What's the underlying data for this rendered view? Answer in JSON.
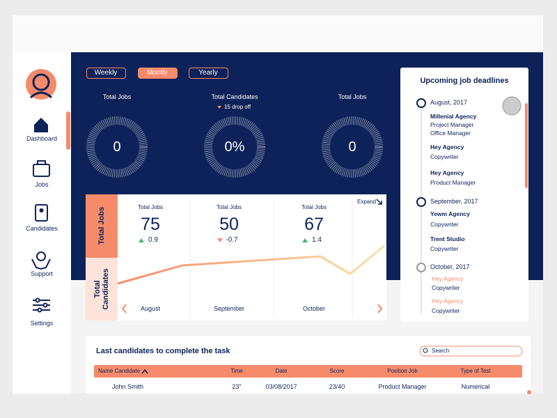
{
  "tabs": [
    "Weekly",
    "Montly",
    "Yearly"
  ],
  "sidebar": [
    "Dashboard",
    "Jobs",
    "Candidates",
    "Support",
    "Settings"
  ],
  "donuts": [
    {
      "title": "Total Jobs",
      "value": "0"
    },
    {
      "title": "Total Candidates",
      "note": "15 drop off",
      "value": "0%"
    },
    {
      "title": "Total Jobs",
      "value": "0"
    }
  ],
  "panel": {
    "side_labels": [
      "Total Jobs",
      "Total Candidates"
    ],
    "expand": "Expand",
    "stats": [
      {
        "label": "Total Jobs",
        "value": 75,
        "change": 0.9
      },
      {
        "label": "Total Jobs",
        "value": 50,
        "change": -0.7
      },
      {
        "label": "Total Jobs",
        "value": 67,
        "change": 1.4
      }
    ],
    "months": [
      "August",
      "September",
      "October"
    ]
  },
  "deadlines": {
    "title": "Upcoming job deadlines",
    "groups": [
      {
        "date": "August, 2017",
        "items": [
          {
            "company": "Millenial Agency",
            "roles": [
              "Project Manager",
              "Office Manager"
            ]
          },
          {
            "company": "Hey Agency",
            "roles": [
              "Copywriter"
            ]
          },
          {
            "company": "Hey Agency",
            "roles": [
              "Product Manager"
            ]
          }
        ]
      },
      {
        "date": "September, 2017",
        "items": [
          {
            "company": "Yewm Agency",
            "roles": [
              "Copywriter"
            ]
          },
          {
            "company": "Trent Studio",
            "roles": [
              "Copywriter"
            ]
          }
        ]
      },
      {
        "date": "October, 2017",
        "items": [
          {
            "company": "Hey Agency",
            "roles": [
              "Copywriter"
            ],
            "highlight": true
          },
          {
            "company": "Hey Agency",
            "roles": [
              "Copywriter"
            ],
            "highlight": true
          }
        ]
      }
    ]
  },
  "table": {
    "title": "Last candidates to complete the task",
    "search": "Search",
    "columns": [
      "Name Candidate",
      "Time",
      "Date",
      "Score",
      "Position Job",
      "Type of Test"
    ],
    "rows": [
      [
        "John Smith",
        "23\"",
        "03/08/2017",
        "23/40",
        "Product Manager",
        "Numerical"
      ]
    ]
  }
}
